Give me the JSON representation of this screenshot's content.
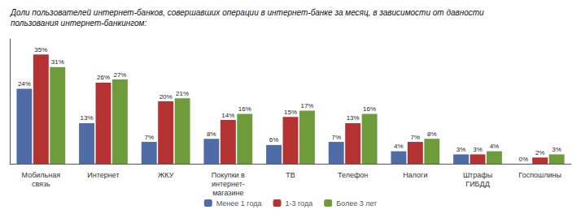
{
  "chart_data": {
    "type": "bar",
    "title": "Доли пользователей интернет-банков, совершавших операции в интернет-банке за месяц, в зависимости от давности\nпользования интернет-банкингом:",
    "categories": [
      "Мобильная\nсвязь",
      "Интернет",
      "ЖКУ",
      "Покупки в\nинтернет-\nмагазине",
      "ТВ",
      "Телефон",
      "Налоги",
      "Штрафы\nГИБДД",
      "Госпошлины"
    ],
    "series": [
      {
        "name": "Менее 1 года",
        "color": "#4f6ca8",
        "values": [
          24,
          13,
          7,
          8,
          6,
          7,
          4,
          3,
          0
        ],
        "value_labels": [
          "24%",
          "13%",
          "7%",
          "8%",
          "6%",
          "7%",
          "4%",
          "3%",
          "0%"
        ]
      },
      {
        "name": "1-3 года",
        "color": "#b53232",
        "values": [
          35,
          26,
          20,
          14,
          15,
          13,
          7,
          3,
          2
        ],
        "value_labels": [
          "35%",
          "26%",
          "20%",
          "14%",
          "15%",
          "13%",
          "7%",
          "3%",
          "2%"
        ]
      },
      {
        "name": "Более 3 лет",
        "color": "#6e9c3a",
        "values": [
          31,
          27,
          21,
          16,
          17,
          16,
          8,
          4,
          3
        ],
        "value_labels": [
          "31%",
          "27%",
          "21%",
          "16%",
          "17%",
          "16%",
          "8%",
          "4%",
          "3%"
        ]
      }
    ],
    "ylim": [
      0,
      40
    ],
    "grid": false,
    "legend": "bottom",
    "data_labels": true,
    "tick_labels": "x"
  }
}
